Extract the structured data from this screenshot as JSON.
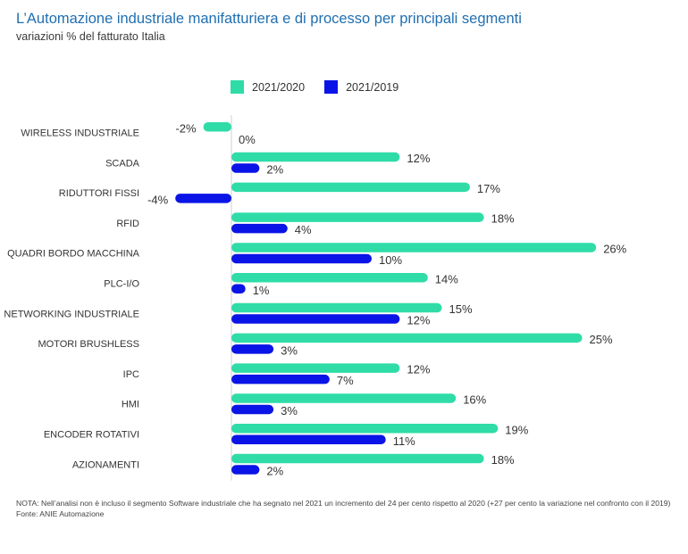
{
  "header": {
    "title": "L’Automazione industriale manifatturiera e di processo per principali segmenti",
    "subtitle": "variazioni % del fatturato Italia"
  },
  "colors": {
    "series1": "#2fdca7",
    "series2": "#0a14e6",
    "axis": "#cfcfcf",
    "label": "#333333"
  },
  "chart_data": {
    "type": "bar",
    "orientation": "horizontal",
    "title": "L’Automazione industriale manifatturiera e di processo per principali segmenti",
    "subtitle": "variazioni % del fatturato Italia",
    "xlabel": "",
    "ylabel": "",
    "value_suffix": "%",
    "legend_position": "top",
    "grid": false,
    "categories": [
      "WIRELESS INDUSTRIALE",
      "SCADA",
      "RIDUTTORI FISSI",
      "RFID",
      "QUADRI BORDO MACCHINA",
      "PLC-I/O",
      "NETWORKING INDUSTRIALE",
      "MOTORI BRUSHLESS",
      "IPC",
      "HMI",
      "ENCODER ROTATIVI",
      "AZIONAMENTI"
    ],
    "series": [
      {
        "name": "2021/2020",
        "color": "#2fdca7",
        "values": [
          -2,
          12,
          17,
          18,
          26,
          14,
          15,
          25,
          12,
          16,
          19,
          18
        ]
      },
      {
        "name": "2021/2019",
        "color": "#0a14e6",
        "values": [
          0,
          2,
          -4,
          4,
          10,
          1,
          12,
          3,
          7,
          3,
          11,
          2
        ]
      }
    ]
  },
  "notes": {
    "nota": "NOTA: Nell’analisi non è incluso il segmento Software industriale che ha segnato nel 2021 un incremento del 24 per cento rispetto al 2020 (+27 per cento la variazione nel confronto con il 2019)",
    "fonte": "Fonte: ANIE Automazione"
  }
}
